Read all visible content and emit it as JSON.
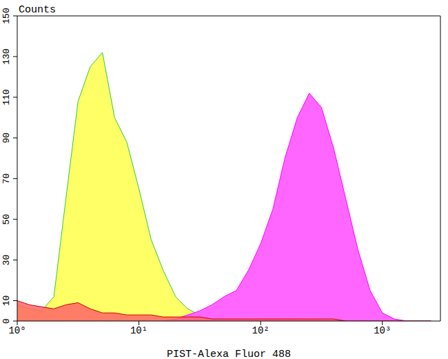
{
  "chart_data": {
    "type": "area",
    "x_label": "PIST-Alexa Fluor 488",
    "y_label": "Counts",
    "log": "x",
    "grid": false,
    "xlim": [
      1,
      3000
    ],
    "xticks": [
      {
        "value": 1,
        "label": "10⁰"
      },
      {
        "value": 10,
        "label": "10¹"
      },
      {
        "value": 100,
        "label": "10²"
      },
      {
        "value": 1000,
        "label": "10³"
      }
    ],
    "ylim": [
      0,
      150
    ],
    "yticks": [
      0,
      10,
      30,
      50,
      70,
      90,
      110,
      130,
      150
    ],
    "x": [
      1,
      1.26,
      1.58,
      2,
      2.51,
      3.16,
      3.98,
      5.01,
      6.31,
      7.94,
      10,
      12.6,
      15.8,
      20,
      25.1,
      31.6,
      39.8,
      50.1,
      63.1,
      79.4,
      100,
      126,
      158,
      200,
      251,
      316,
      398,
      501,
      631,
      794,
      1000,
      1259,
      1585,
      1995,
      2512
    ],
    "series": [
      {
        "color": "#ffff66",
        "values": [
          8,
          6,
          5,
          12,
          60,
          108,
          125,
          132,
          100,
          88,
          65,
          40,
          25,
          12,
          6,
          3,
          1,
          0,
          0,
          0,
          0,
          0,
          0,
          0,
          0,
          0,
          0,
          0,
          0,
          0,
          0,
          0,
          0,
          0,
          0
        ]
      },
      {
        "color": "#ff66ff",
        "values": [
          0,
          0,
          0,
          0,
          0,
          0,
          0,
          0,
          0,
          0,
          0,
          0,
          0,
          1,
          3,
          5,
          8,
          12,
          15,
          25,
          38,
          55,
          80,
          100,
          112,
          105,
          85,
          60,
          35,
          15,
          4,
          1,
          0,
          0,
          0
        ]
      },
      {
        "color": "#ff6666",
        "values": [
          10,
          8,
          7,
          6,
          8,
          9,
          6,
          4,
          4,
          3,
          3,
          3,
          2,
          2,
          2,
          2,
          1,
          1,
          1,
          1,
          1,
          1,
          1,
          1,
          1,
          1,
          1,
          0,
          0,
          0,
          0,
          0,
          0,
          0,
          0
        ]
      }
    ]
  }
}
